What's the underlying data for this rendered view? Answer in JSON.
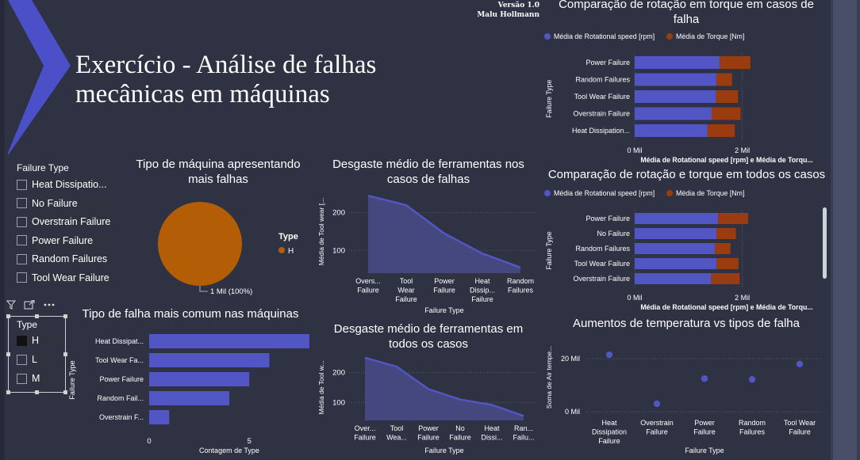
{
  "header": {
    "version": "Versão 1.0",
    "author": "Malu Hollmann",
    "title_line1": "Exercício - Análise de falhas",
    "title_line2": "mecânicas em máquinas"
  },
  "colors": {
    "background": "#2f3242",
    "bar": "#5256c4",
    "torque": "#9a3b10",
    "pie": "#b35e06",
    "accent_chevron": "#4b50c8"
  },
  "failure_slicer": {
    "title": "Failure Type",
    "items": [
      "Heat Dissipatio...",
      "No Failure",
      "Overstrain Failure",
      "Power Failure",
      "Random Failures",
      "Tool Wear Failure"
    ]
  },
  "type_slicer": {
    "title": "Type",
    "items": [
      {
        "label": "H",
        "checked": true
      },
      {
        "label": "L",
        "checked": false
      },
      {
        "label": "M",
        "checked": false
      }
    ],
    "icons": [
      "filter-icon",
      "focus-mode-icon",
      "more-options-icon"
    ]
  },
  "chart_data": [
    {
      "id": "pie",
      "type": "pie",
      "title": "Tipo de máquina apresentando mais falhas",
      "legend_title": "Type",
      "slices": [
        {
          "name": "H",
          "value": 100
        }
      ],
      "data_label": "1 Mil (100%)"
    },
    {
      "id": "wear_fail",
      "type": "area",
      "title": "Desgaste médio de ferramentas nos casos de falhas",
      "ylabel": "Média de Tool wear [...",
      "xlabel": "Failure Type",
      "categories": [
        [
          "Overs...",
          "Failure"
        ],
        [
          "Tool",
          "Wear",
          "Failure"
        ],
        [
          "Power",
          "Failure"
        ],
        [
          "Heat",
          "Dissip...",
          "Failure"
        ],
        [
          "Random",
          "Failures"
        ]
      ],
      "values": [
        245,
        220,
        145,
        92,
        55
      ],
      "ylim": [
        40,
        260
      ],
      "yticks": [
        100,
        200
      ]
    },
    {
      "id": "wear_all",
      "type": "area",
      "title": "Desgaste médio de ferramentas em todos os casos",
      "ylabel": "Média de Tool w...",
      "xlabel": "Failure Type",
      "categories": [
        [
          "Over...",
          "Failure"
        ],
        [
          "Tool",
          "Wea..."
        ],
        [
          "Power",
          "Failure"
        ],
        [
          "No",
          "Failure"
        ],
        [
          "Heat",
          "Dissi..."
        ],
        [
          "Ran...",
          "Failu..."
        ]
      ],
      "values": [
        250,
        220,
        145,
        110,
        92,
        55
      ],
      "ylim": [
        40,
        260
      ],
      "yticks": [
        100,
        200
      ]
    },
    {
      "id": "common_fail",
      "type": "bar",
      "title": "Tipo de falha mais comum nas máquinas",
      "xlabel": "Contagem de Type",
      "ylabel": "Failure Type",
      "categories": [
        "Heat Dissipat...",
        "Tool Wear Fa...",
        "Power Failure",
        "Random Fail...",
        "Overstrain F..."
      ],
      "values": [
        8,
        6,
        5,
        4,
        1
      ],
      "xlim": [
        0,
        8
      ],
      "xticks": [
        0,
        5
      ]
    },
    {
      "id": "rot_torque_fail",
      "type": "bar",
      "title": "Comparação de rotação em torque em casos de falha",
      "legend": [
        "Média de Rotational speed [rpm]",
        "Média de Torque [Nm]"
      ],
      "xlabel": "Média de Rotational speed [rpm] e Média de Torqu...",
      "ylabel": "Failure Type",
      "categories": [
        "Power Failure",
        "Random Failures",
        "Tool Wear Failure",
        "Overstrain Failure",
        "Heat Dissipation..."
      ],
      "series": [
        {
          "name": "Média de Rotational speed [rpm]",
          "values": [
            1.58,
            1.52,
            1.51,
            1.43,
            1.35
          ]
        },
        {
          "name": "Média de Torque [Nm]",
          "values": [
            0.57,
            0.29,
            0.41,
            0.54,
            0.51
          ]
        }
      ],
      "xlim": [
        0,
        2.3
      ],
      "xticks": [
        "0 Mil",
        "2 Mil"
      ]
    },
    {
      "id": "rot_torque_all",
      "type": "bar",
      "title": "Comparação de rotação e torque em todos os casos",
      "legend": [
        "Média de Rotational speed [rpm]",
        "Média de Torque [Nm]"
      ],
      "xlabel": "Média de Rotational speed [rpm] e Média de Torqu...",
      "ylabel": "Failure Type",
      "categories": [
        "Power Failure",
        "No Failure",
        "Random Failures",
        "Tool Wear Failure",
        "Overstrain Failure"
      ],
      "series": [
        {
          "name": "Média de Rotational speed [rpm]",
          "values": [
            1.55,
            1.52,
            1.49,
            1.52,
            1.42
          ]
        },
        {
          "name": "Média de Torque [Nm]",
          "values": [
            0.56,
            0.36,
            0.29,
            0.41,
            0.53
          ]
        }
      ],
      "xlim": [
        0,
        2.3
      ],
      "xticks": [
        "0 Mil",
        "2 Mil"
      ]
    },
    {
      "id": "temp_scatter",
      "type": "scatter",
      "title": "Aumentos de temperatura vs tipos de falha",
      "ylabel": "Soma de Air tempe...",
      "xlabel": "Failure Type",
      "categories": [
        [
          "Heat",
          "Dissipation",
          "Failure"
        ],
        [
          "Overstrain",
          "Failure"
        ],
        [
          "Power",
          "Failure"
        ],
        [
          "Random",
          "Failures"
        ],
        [
          "Tool Wear",
          "Failure"
        ]
      ],
      "values": [
        21500,
        3000,
        12500,
        12200,
        18000
      ],
      "ylim": [
        0,
        26000
      ],
      "yticks": [
        "0 Mil",
        "20 Mil"
      ]
    }
  ]
}
